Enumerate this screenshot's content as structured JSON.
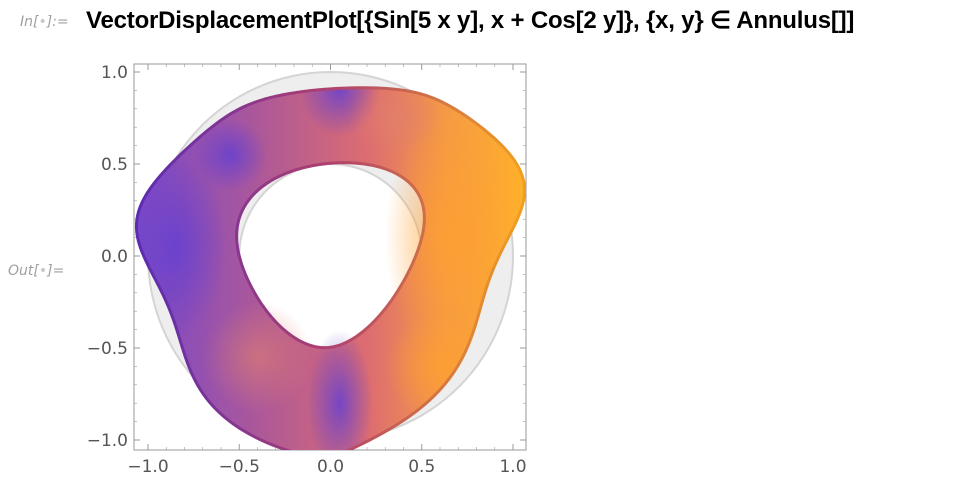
{
  "notebook": {
    "input_label_prefix": "In[",
    "input_label_suffix": "]:=",
    "output_label_prefix": "Out[",
    "output_label_suffix": "]=",
    "cell_bullet": "•",
    "input_code": "VectorDisplacementPlot[{Sin[5 x y], x + Cos[2 y]}, {x, y} ∈ Annulus[]]"
  },
  "chart_data": {
    "type": "vector-displacement-plot",
    "xlim": [
      -1.0,
      1.0
    ],
    "ylim": [
      -1.0,
      1.0
    ],
    "x_ticks": [
      "−1.0",
      "−0.5",
      "0.0",
      "0.5",
      "1.0"
    ],
    "y_ticks": [
      "1.0",
      "0.5",
      "0.0",
      "−0.5",
      "−1.0"
    ],
    "x_tick_values": [
      -1.0,
      -0.5,
      0.0,
      0.5,
      1.0
    ],
    "y_tick_values": [
      1.0,
      0.5,
      0.0,
      -0.5,
      -1.0
    ],
    "region": "annulus",
    "outer_radius": 1.0,
    "inner_radius": 0.5,
    "displacement": [
      "Sin[5 x y]",
      "x + Cos[2 y]"
    ],
    "colors": {
      "low": "#6a3fd0",
      "mid": "#c05080",
      "high": "#ffb020",
      "reference_fill": "#eeeeee",
      "reference_stroke": "#d4d4d4"
    }
  }
}
